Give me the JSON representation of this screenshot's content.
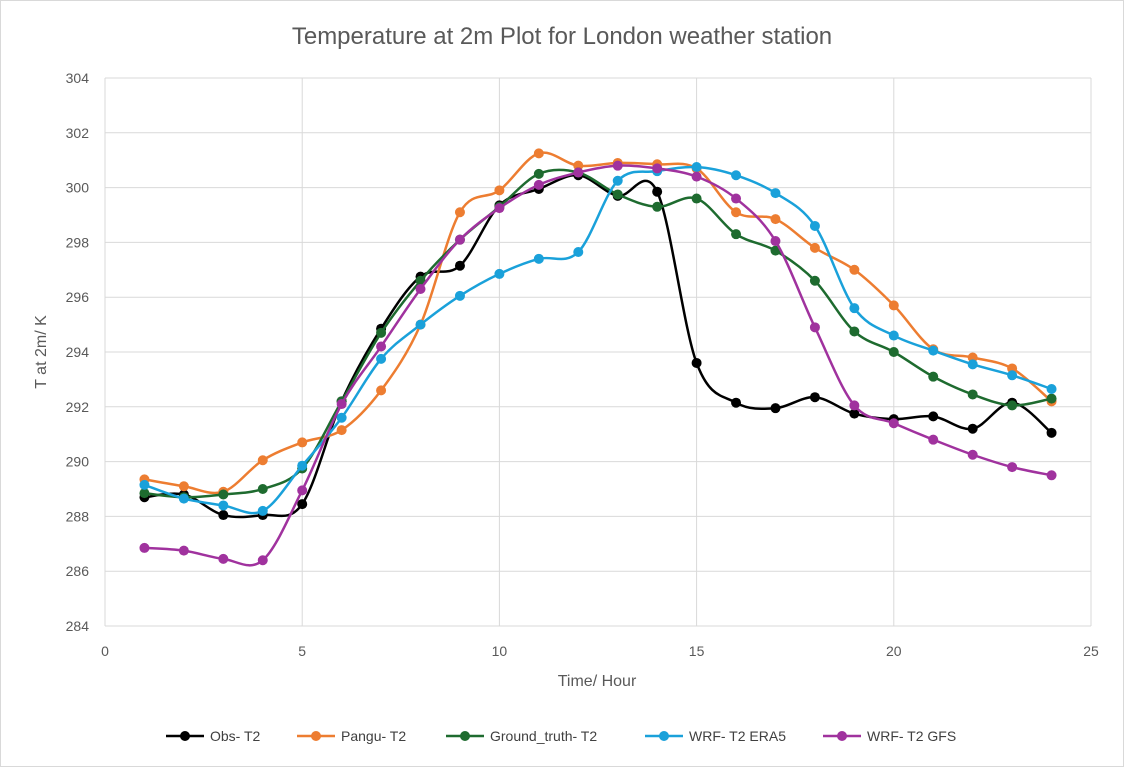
{
  "chart_data": {
    "type": "line",
    "title": "Temperature at 2m Plot for London weather station",
    "xlabel": "Time/ Hour",
    "ylabel": "T at 2m/ K",
    "xlim": [
      0,
      25
    ],
    "ylim": [
      284,
      304
    ],
    "x_ticks": [
      "0",
      "5",
      "10",
      "15",
      "20",
      "25"
    ],
    "y_ticks": [
      "284",
      "286",
      "288",
      "290",
      "292",
      "294",
      "296",
      "298",
      "300",
      "302",
      "304"
    ],
    "grid": true,
    "legend_position": "bottom",
    "x": [
      1,
      2,
      3,
      4,
      5,
      6,
      7,
      8,
      9,
      10,
      11,
      12,
      13,
      14,
      15,
      16,
      17,
      18,
      19,
      20,
      21,
      22,
      23,
      24
    ],
    "series": [
      {
        "name": "Obs- T2",
        "color": "#000000",
        "values": [
          288.7,
          288.8,
          288.05,
          288.05,
          288.45,
          292.2,
          294.85,
          296.75,
          297.15,
          299.35,
          299.95,
          300.45,
          299.7,
          299.85,
          293.6,
          292.15,
          291.95,
          292.35,
          291.75,
          291.55,
          291.65,
          291.2,
          292.15,
          291.05
        ]
      },
      {
        "name": "Pangu- T2",
        "color": "#ED7D31",
        "values": [
          289.35,
          289.1,
          288.9,
          290.05,
          290.7,
          291.15,
          292.6,
          295.0,
          299.1,
          299.9,
          301.25,
          300.8,
          300.9,
          300.85,
          300.7,
          299.1,
          298.85,
          297.8,
          297.0,
          295.7,
          294.1,
          293.8,
          293.4,
          292.2
        ]
      },
      {
        "name": "Ground_truth- T2",
        "color": "#1E6B2F",
        "values": [
          288.85,
          288.7,
          288.8,
          289.0,
          289.75,
          292.2,
          294.7,
          296.6,
          298.1,
          299.3,
          300.5,
          300.55,
          299.75,
          299.3,
          299.6,
          298.3,
          297.7,
          296.6,
          294.75,
          294.0,
          293.1,
          292.45,
          292.05,
          292.3
        ]
      },
      {
        "name": "WRF- T2 ERA5",
        "color": "#1AA1DA",
        "values": [
          289.15,
          288.65,
          288.4,
          288.2,
          289.85,
          291.6,
          293.75,
          295.0,
          296.05,
          296.85,
          297.4,
          297.65,
          300.25,
          300.6,
          300.75,
          300.45,
          299.8,
          298.6,
          295.6,
          294.6,
          294.05,
          293.55,
          293.15,
          292.65
        ]
      },
      {
        "name": "WRF- T2 GFS",
        "color": "#A0329E",
        "values": [
          286.85,
          286.75,
          286.45,
          286.4,
          288.95,
          292.1,
          294.2,
          296.3,
          298.1,
          299.25,
          300.1,
          300.55,
          300.8,
          300.7,
          300.4,
          299.6,
          298.05,
          294.9,
          292.05,
          291.4,
          290.8,
          290.25,
          289.8,
          289.5
        ]
      }
    ]
  }
}
